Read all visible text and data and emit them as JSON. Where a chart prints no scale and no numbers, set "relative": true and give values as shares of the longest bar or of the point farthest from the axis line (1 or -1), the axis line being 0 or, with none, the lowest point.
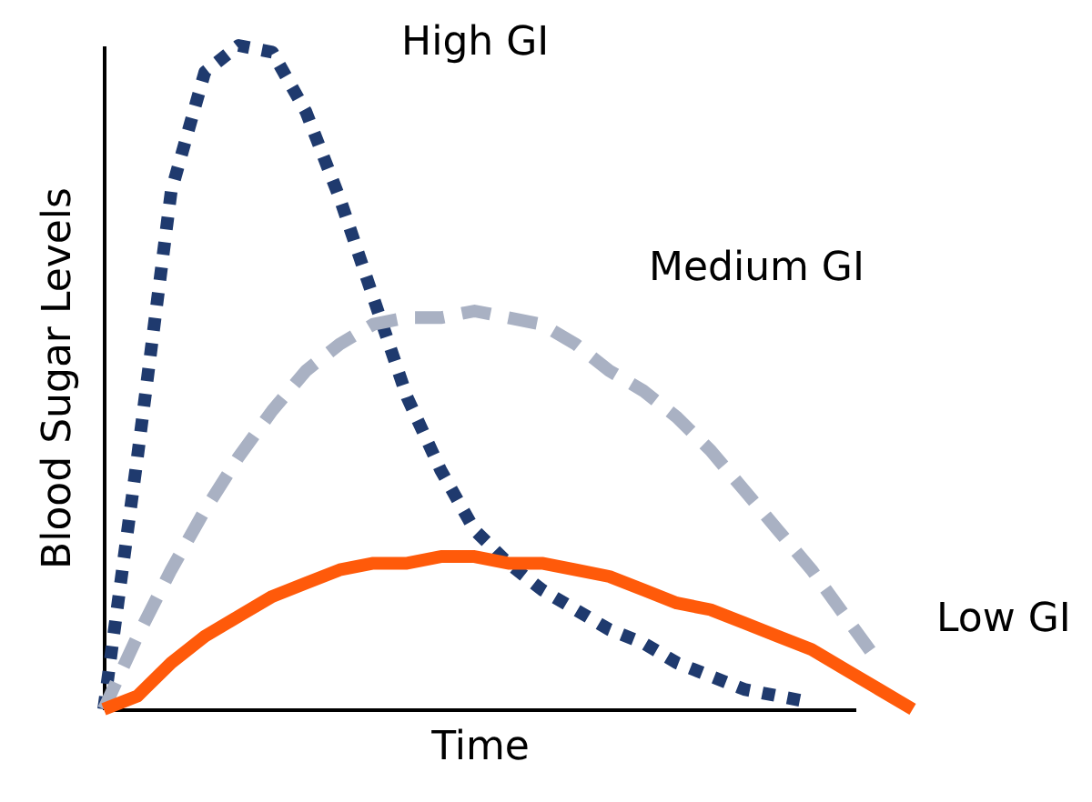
{
  "chart_data": {
    "type": "line",
    "relative": true,
    "xlabel": "Time",
    "ylabel": "Blood  Sugar Levels",
    "legend": false,
    "grid": false,
    "tick_labels": false,
    "categories": [
      null,
      null,
      null,
      null,
      null,
      null,
      null,
      null,
      null,
      null,
      null,
      null,
      null,
      null,
      null,
      null,
      null,
      null,
      null,
      null,
      null,
      null,
      null,
      null,
      null
    ],
    "series": [
      {
        "name": "High GI",
        "color": "#1f3a6e",
        "line_style": "dotted",
        "values": [
          0,
          0.38,
          0.78,
          0.96,
          1.0,
          0.99,
          0.9,
          0.77,
          0.62,
          0.47,
          0.36,
          0.27,
          0.22,
          0.18,
          0.15,
          0.12,
          0.1,
          0.07,
          0.05,
          0.03,
          0.02,
          0.01,
          null,
          null,
          null
        ]
      },
      {
        "name": "Medium GI",
        "color": "#a9b1c3",
        "line_style": "dashed",
        "values": [
          0,
          0.11,
          0.21,
          0.3,
          0.38,
          0.45,
          0.51,
          0.55,
          0.58,
          0.59,
          0.59,
          0.6,
          0.59,
          0.58,
          0.55,
          0.51,
          0.48,
          0.44,
          0.39,
          0.33,
          0.27,
          0.21,
          0.14,
          0.07,
          null
        ]
      },
      {
        "name": "Low GI",
        "color": "#ff5a0a",
        "line_style": "solid",
        "values": [
          0,
          0.02,
          0.07,
          0.11,
          0.14,
          0.17,
          0.19,
          0.21,
          0.22,
          0.22,
          0.23,
          0.23,
          0.22,
          0.22,
          0.21,
          0.2,
          0.18,
          0.16,
          0.15,
          0.13,
          0.11,
          0.09,
          0.06,
          0.03,
          0
        ]
      }
    ]
  }
}
